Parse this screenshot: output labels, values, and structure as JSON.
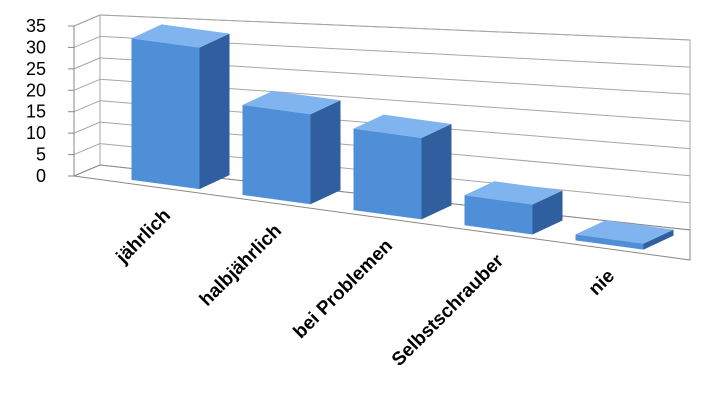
{
  "chart_data": {
    "type": "bar",
    "categories": [
      "jährlich",
      "halbjährlich",
      "bei Problemen",
      "Selbstschrauber",
      "nie"
    ],
    "values": [
      33,
      21,
      19,
      7,
      0
    ],
    "ylim": [
      0,
      35
    ],
    "yticks": [
      0,
      5,
      10,
      15,
      20,
      25,
      30,
      35
    ],
    "grid": true,
    "title": "",
    "xlabel": "",
    "ylabel": ""
  },
  "colors": {
    "bar_front": "#4f8fd8",
    "bar_top": "#7fb4ef",
    "bar_side": "#2f5f9f",
    "grid": "#a6a6a6",
    "axis": "#888888"
  }
}
